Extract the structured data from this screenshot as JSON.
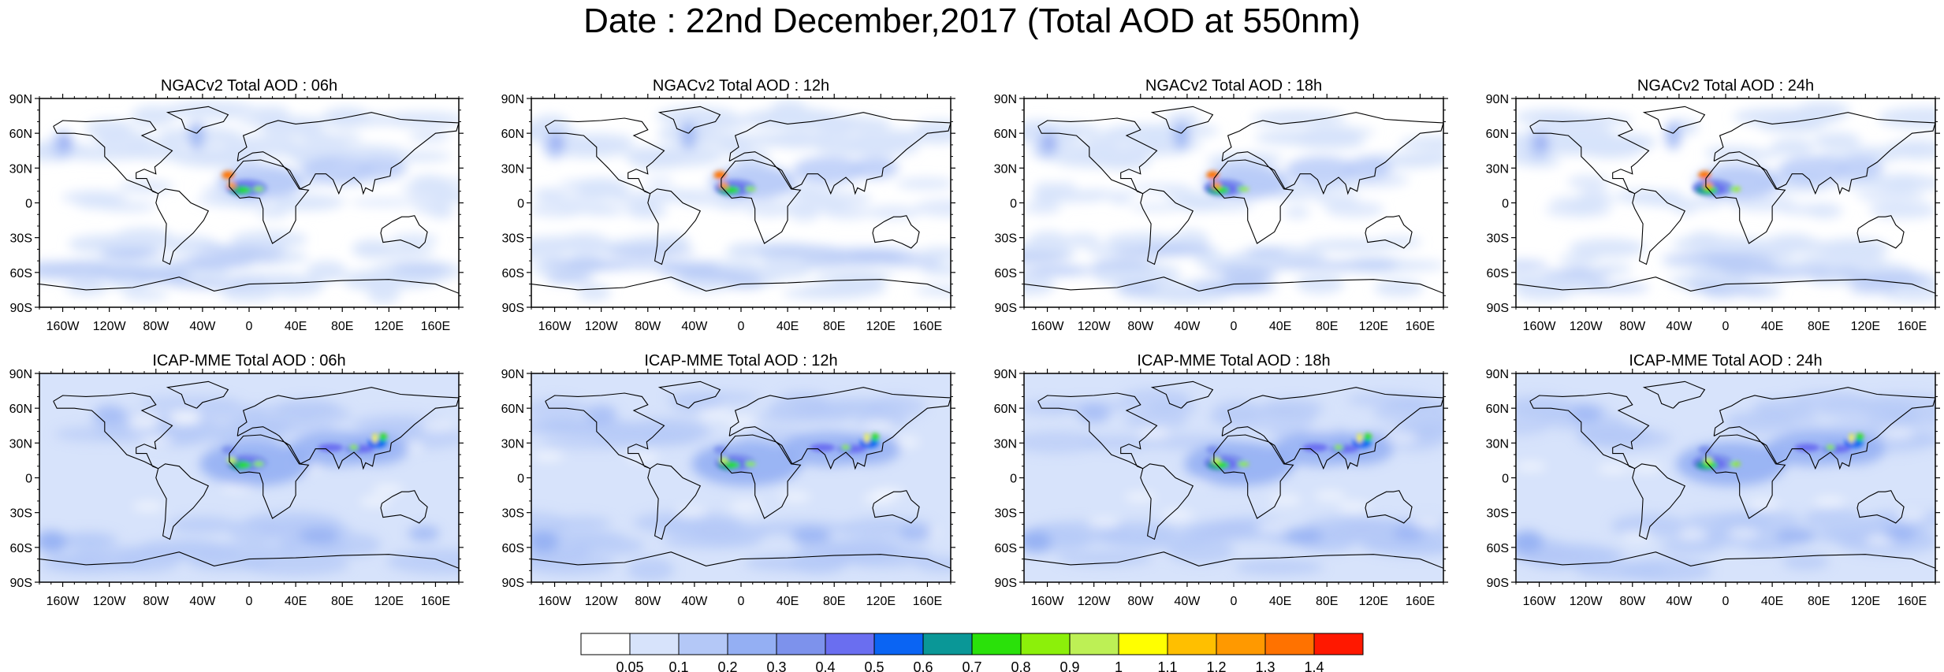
{
  "title": "Date : 22nd December,2017 (Total AOD at 550nm)",
  "axes": {
    "lat_labels": [
      "90N",
      "60N",
      "30N",
      "0",
      "30S",
      "60S",
      "90S"
    ],
    "lon_labels": [
      "160W",
      "120W",
      "80W",
      "40W",
      "0",
      "40E",
      "80E",
      "120E",
      "160E"
    ],
    "lat_values": [
      90,
      60,
      30,
      0,
      -30,
      -60,
      -90
    ],
    "lon_values": [
      -160,
      -120,
      -80,
      -40,
      0,
      40,
      80,
      120,
      160
    ],
    "lon_range": [
      -180,
      180
    ],
    "lat_range": [
      -90,
      90
    ]
  },
  "panels": [
    {
      "title": "NGACv2 Total AOD : 06h",
      "model": "NGACv2",
      "hour": "06h"
    },
    {
      "title": "NGACv2 Total AOD : 12h",
      "model": "NGACv2",
      "hour": "12h"
    },
    {
      "title": "NGACv2 Total AOD : 18h",
      "model": "NGACv2",
      "hour": "18h"
    },
    {
      "title": "NGACv2 Total AOD : 24h",
      "model": "NGACv2",
      "hour": "24h"
    },
    {
      "title": "ICAP-MME Total AOD : 06h",
      "model": "ICAP-MME",
      "hour": "06h"
    },
    {
      "title": "ICAP-MME Total AOD : 12h",
      "model": "ICAP-MME",
      "hour": "12h"
    },
    {
      "title": "ICAP-MME Total AOD : 18h",
      "model": "ICAP-MME",
      "hour": "18h"
    },
    {
      "title": "ICAP-MME Total AOD : 24h",
      "model": "ICAP-MME",
      "hour": "24h"
    }
  ],
  "colorbar": {
    "labels": [
      "0.05",
      "0.1",
      "0.2",
      "0.3",
      "0.4",
      "0.5",
      "0.6",
      "0.7",
      "0.8",
      "0.9",
      "1",
      "1.1",
      "1.2",
      "1.3",
      "1.4"
    ],
    "colors": [
      "#ffffff",
      "#d7e3fb",
      "#b4c8f7",
      "#94aff3",
      "#7d92ec",
      "#6a6ef0",
      "#0a64f3",
      "#0a9797",
      "#2ae10a",
      "#8cf00a",
      "#bdf055",
      "#ffff00",
      "#ffbf00",
      "#ff9900",
      "#ff7200",
      "#ff1800"
    ]
  }
}
